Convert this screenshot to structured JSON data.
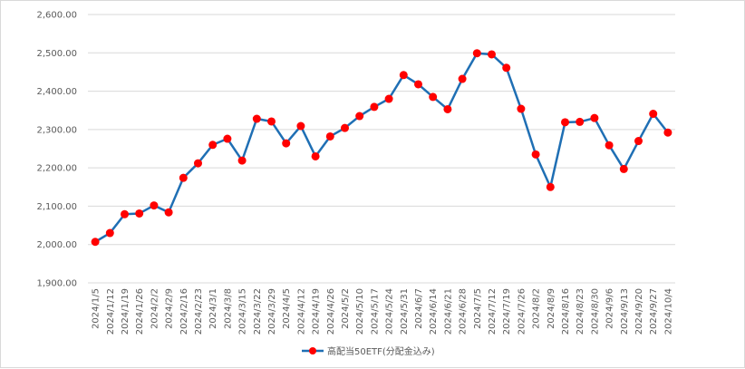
{
  "chart_data": {
    "type": "line",
    "title": "",
    "xlabel": "",
    "ylabel": "",
    "ylim": [
      1900,
      2600
    ],
    "y_ticks": [
      "1,900.00",
      "2,000.00",
      "2,100.00",
      "2,200.00",
      "2,300.00",
      "2,400.00",
      "2,500.00",
      "2,600.00"
    ],
    "grid": true,
    "legend_position": "bottom",
    "categories": [
      "2024/1/5",
      "2024/1/12",
      "2024/1/19",
      "2024/1/26",
      "2024/2/2",
      "2024/2/9",
      "2024/2/16",
      "2024/2/23",
      "2024/3/1",
      "2024/3/8",
      "2024/3/15",
      "2024/3/22",
      "2024/3/29",
      "2024/4/5",
      "2024/4/12",
      "2024/4/19",
      "2024/4/26",
      "2024/5/2",
      "2024/5/10",
      "2024/5/17",
      "2024/5/24",
      "2024/5/31",
      "2024/6/7",
      "2024/6/14",
      "2024/6/21",
      "2024/6/28",
      "2024/7/5",
      "2024/7/12",
      "2024/7/19",
      "2024/7/26",
      "2024/8/2",
      "2024/8/9",
      "2024/8/16",
      "2024/8/23",
      "2024/8/30",
      "2024/9/6",
      "2024/9/13",
      "2024/9/20",
      "2024/9/27",
      "2024/10/4"
    ],
    "series": [
      {
        "name": "高配当50ETF(分配金込み)",
        "line_color": "#1f6fb4",
        "marker_color": "#ff0000",
        "values": [
          2007,
          2030,
          2079,
          2081,
          2102,
          2084,
          2174,
          2212,
          2260,
          2276,
          2219,
          2328,
          2321,
          2264,
          2309,
          2230,
          2282,
          2304,
          2335,
          2359,
          2380,
          2442,
          2418,
          2385,
          2353,
          2432,
          2499,
          2496,
          2461,
          2354,
          2235,
          2150,
          2319,
          2320,
          2330,
          2259,
          2197,
          2270,
          2341,
          2292
        ]
      }
    ]
  }
}
